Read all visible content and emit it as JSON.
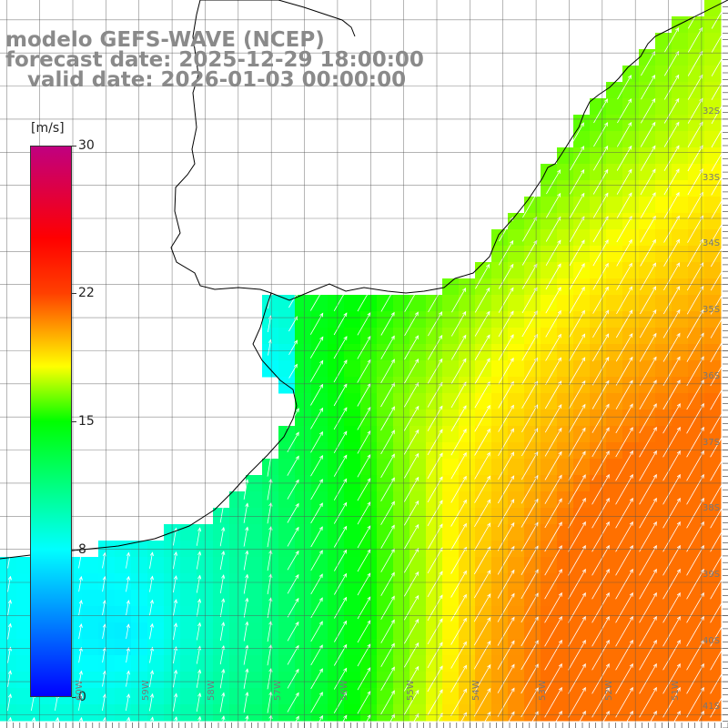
{
  "title": {
    "line1": "modelo GEFS-WAVE (NCEP)",
    "line2": "forecast date: 2025-12-29 18:00:00",
    "line3": "   valid date: 2026-01-03 00:00:00"
  },
  "colorbar": {
    "unit": "[m/s]",
    "min": 0,
    "max": 30,
    "ticks": [
      {
        "value": 30,
        "label": "30"
      },
      {
        "value": 22,
        "label": "22"
      },
      {
        "value": 15,
        "label": "15"
      },
      {
        "value": 8,
        "label": "8"
      },
      {
        "value": 0,
        "label": "0"
      }
    ],
    "stops": [
      {
        "value": 0,
        "color": "#0000ff"
      },
      {
        "value": 8,
        "color": "#00ffff"
      },
      {
        "value": 15,
        "color": "#00ff00"
      },
      {
        "value": 18,
        "color": "#ffff00"
      },
      {
        "value": 22,
        "color": "#ff4000"
      },
      {
        "value": 25,
        "color": "#ff0000"
      },
      {
        "value": 30,
        "color": "#c00080"
      }
    ]
  },
  "lat_labels": [
    "32S",
    "33S",
    "34S",
    "35S",
    "36S",
    "37S",
    "38S",
    "39S",
    "40S",
    "41S"
  ],
  "lon_labels": [
    "60W",
    "59W",
    "58W",
    "57W",
    "56W",
    "55W",
    "54W",
    "53W",
    "52W",
    "51W"
  ],
  "map_extent": {
    "lon_min": -61.1,
    "lon_max": -50.1,
    "lat_min": -41.2,
    "lat_max": -30.2
  },
  "colors": {
    "land": "#ffffff",
    "coast": "#000000",
    "grid": "#555555",
    "arrows": "#ffffff",
    "title": "#8a8a8a"
  }
}
